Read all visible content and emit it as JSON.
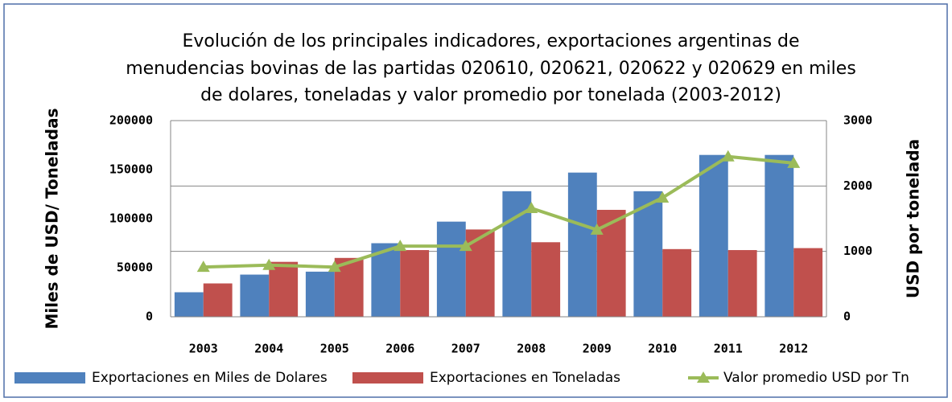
{
  "chart_data": {
    "type": "bar-line",
    "title": [
      "Evolución de los principales indicadores, exportaciones  argentinas de",
      "menudencias bovinas de las partidas 020610, 020621, 020622 y 020629 en miles",
      "de dolares, toneladas y valor promedio por tonelada (2003-2012)"
    ],
    "y_label": "Miles de USD/ Toneladas",
    "y2_label": "USD por tonelada",
    "categories": [
      "2003",
      "2004",
      "2005",
      "2006",
      "2007",
      "2008",
      "2009",
      "2010",
      "2011",
      "2012"
    ],
    "series": [
      {
        "name": "Exportaciones en Miles de Dolares",
        "color": "#4f81bd",
        "kind": "bar",
        "values": [
          25000,
          43000,
          46000,
          75000,
          97000,
          128000,
          147000,
          128000,
          165000,
          165000
        ]
      },
      {
        "name": "Exportaciones en Toneladas",
        "color": "#c0504d",
        "kind": "bar",
        "values": [
          34000,
          56000,
          60000,
          68000,
          89000,
          76000,
          109000,
          69000,
          68000,
          70000
        ]
      },
      {
        "name": "Valor promedio USD por Tn",
        "color": "#9bbb59",
        "kind": "line",
        "axis": "y2",
        "values": [
          760,
          790,
          760,
          1080,
          1080,
          1660,
          1330,
          1820,
          2450,
          2350
        ]
      }
    ],
    "ylim": [
      0,
      200000
    ],
    "yticks": [
      0,
      50000,
      100000,
      150000,
      200000
    ],
    "y2lim": [
      0,
      3000
    ],
    "y2ticks": [
      0,
      1000,
      2000,
      3000
    ],
    "grid": "y2",
    "legend": "bottom"
  }
}
